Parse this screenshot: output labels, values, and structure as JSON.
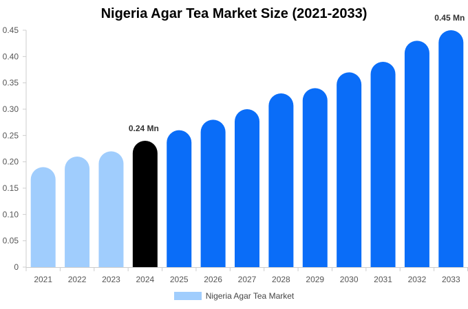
{
  "chart_data": {
    "type": "bar",
    "title": "Nigeria Agar Tea Market Size (2021-2033)",
    "categories": [
      "2021",
      "2022",
      "2023",
      "2024",
      "2025",
      "2026",
      "2027",
      "2028",
      "2029",
      "2030",
      "2031",
      "2032",
      "2033"
    ],
    "series": [
      {
        "name": "Nigeria Agar Tea Market",
        "values": [
          0.19,
          0.21,
          0.22,
          0.24,
          0.26,
          0.28,
          0.3,
          0.33,
          0.34,
          0.37,
          0.39,
          0.43,
          0.45
        ]
      }
    ],
    "ylim": [
      0,
      0.45
    ],
    "yticks": [
      "0",
      "0.05",
      "0.10",
      "0.15",
      "0.20",
      "0.25",
      "0.30",
      "0.35",
      "0.40",
      "0.45"
    ],
    "annotations": [
      {
        "category": "2024",
        "text": "0.24 Mn"
      },
      {
        "category": "2033",
        "text": "0.45 Mn"
      }
    ],
    "colors": {
      "historical": "#a0cdfd",
      "base_year": "#000000",
      "forecast": "#0a6df8",
      "axis": "#cccccc",
      "tick_text": "#555555",
      "annotation_text": "#333333"
    },
    "legend_position": "bottom",
    "grid": false
  }
}
